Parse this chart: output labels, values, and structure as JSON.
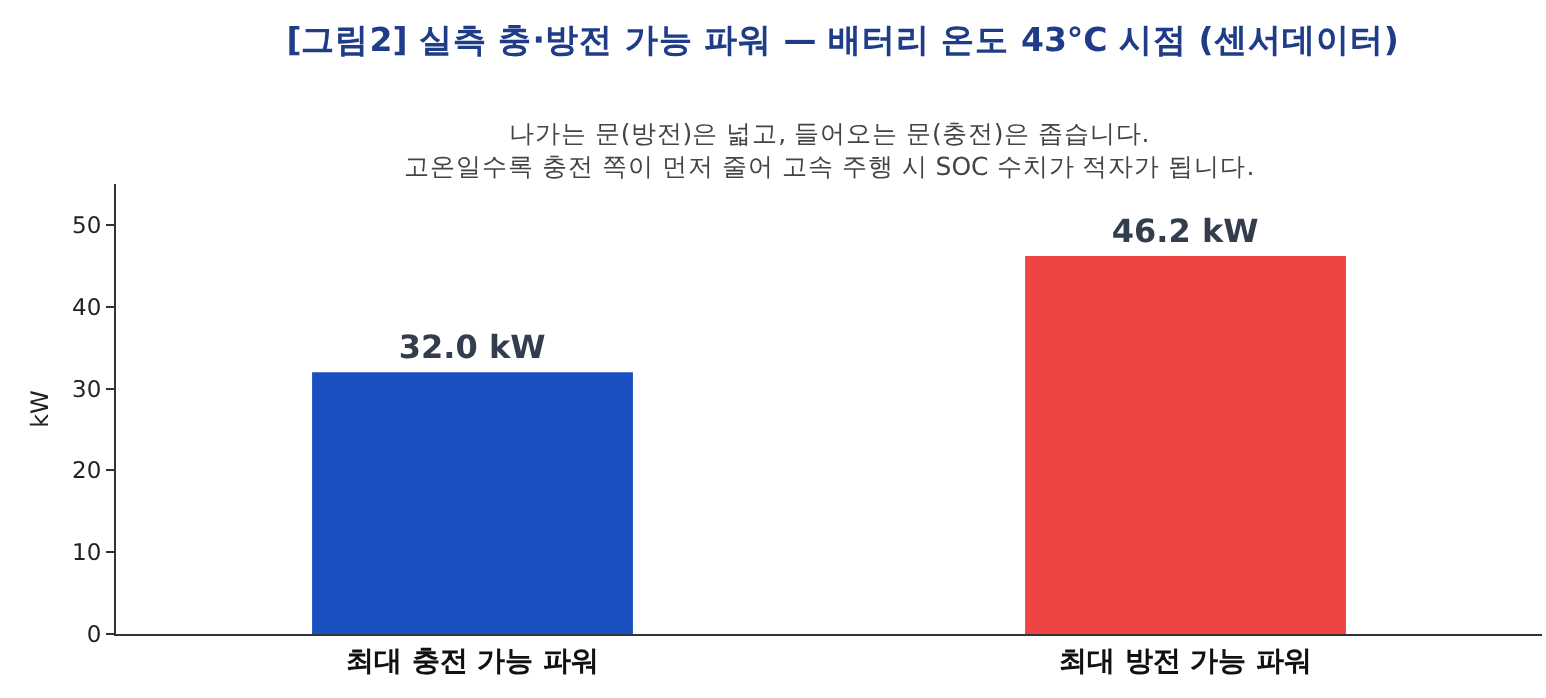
{
  "chart_data": {
    "type": "bar",
    "title": "[그림2] 실측 충·방전 가능 파워 — 배터리 온도 43°C 시점 (센서데이터)",
    "subtitle": "나가는 문(방전)은 넓고, 들어오는 문(충전)은 좁습니다.\n고온일수록 충전 쪽이 먼저 줄어 고속 주행 시 SOC 수치가 적자가 됩니다.",
    "ylabel": "kW",
    "categories": [
      "최대 충전 가능 파워",
      "최대 방전 가능 파워"
    ],
    "values": [
      32.0,
      46.2
    ],
    "colors": [
      "#1a4fbf",
      "#ef4444"
    ],
    "value_labels": [
      "32.0 kW",
      "46.2 kW"
    ],
    "ylim": [
      0,
      55
    ],
    "yticks": [
      0,
      10,
      20,
      30,
      40,
      50
    ]
  }
}
